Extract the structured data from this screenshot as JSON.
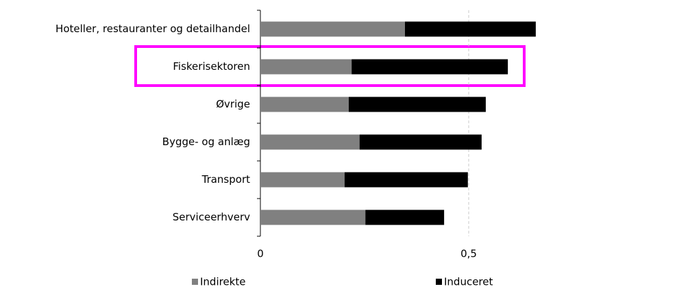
{
  "chart_data": {
    "type": "stacked-barh",
    "categories": [
      "Hoteller, restauranter og detailhandel",
      "Fiskerisektoren",
      "Øvrige",
      "Bygge- og anlæg",
      "Transport",
      "Serviceerhverv"
    ],
    "series": [
      {
        "name": "Indirekte",
        "color": "#808080",
        "values": [
          0.347,
          0.219,
          0.212,
          0.238,
          0.202,
          0.252
        ]
      },
      {
        "name": "Induceret",
        "color": "#000000",
        "values": [
          0.314,
          0.375,
          0.329,
          0.293,
          0.296,
          0.189
        ]
      }
    ],
    "xlim": [
      0,
      1
    ],
    "xticks": [
      0,
      {
        "value": 0.5,
        "label": "0,5"
      }
    ],
    "grid": true
  }
}
